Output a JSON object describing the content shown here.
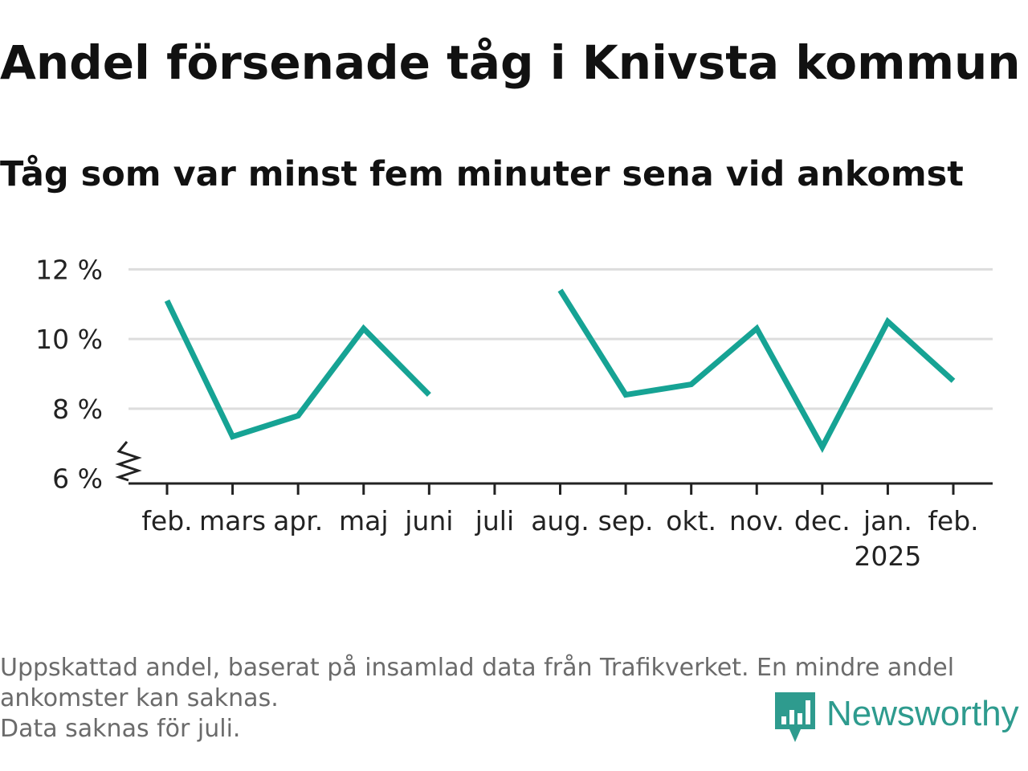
{
  "title": "Andel försenade tåg i Knivsta kommun",
  "subtitle": "Tåg som var minst fem minuter sena vid ankomst",
  "notes": [
    "Uppskattad andel, baserat på insamlad data från Trafikverket. En mindre andel",
    "ankomster kan saknas.",
    "Data saknas för juli."
  ],
  "brand": {
    "name": "Newsworthy",
    "color": "#2e9b8e",
    "icon": "newsworthy-logo-icon"
  },
  "chart_data": {
    "type": "line",
    "title": "Andel försenade tåg i Knivsta kommun",
    "subtitle": "Tåg som var minst fem minuter sena vid ankomst",
    "categories": [
      "feb.",
      "mars",
      "apr.",
      "maj",
      "juni",
      "juli",
      "aug.",
      "sep.",
      "okt.",
      "nov.",
      "dec.",
      "jan.",
      "feb."
    ],
    "year_label": {
      "category_index": 11,
      "text": "2025"
    },
    "series": [
      {
        "values": [
          11.1,
          7.2,
          7.8,
          10.3,
          8.4,
          null,
          11.4,
          8.4,
          8.7,
          10.3,
          6.9,
          10.5,
          8.8
        ]
      }
    ],
    "y_ticks": [
      6,
      8,
      10,
      12
    ],
    "y_tick_labels": [
      "6 %",
      "8 %",
      "10 %",
      "12 %"
    ],
    "ylim": [
      5.9,
      12.4
    ],
    "y_axis_break": true,
    "grid": true,
    "line_color": "#16a394",
    "grid_color": "#dddddd",
    "axis_color": "#222222"
  }
}
